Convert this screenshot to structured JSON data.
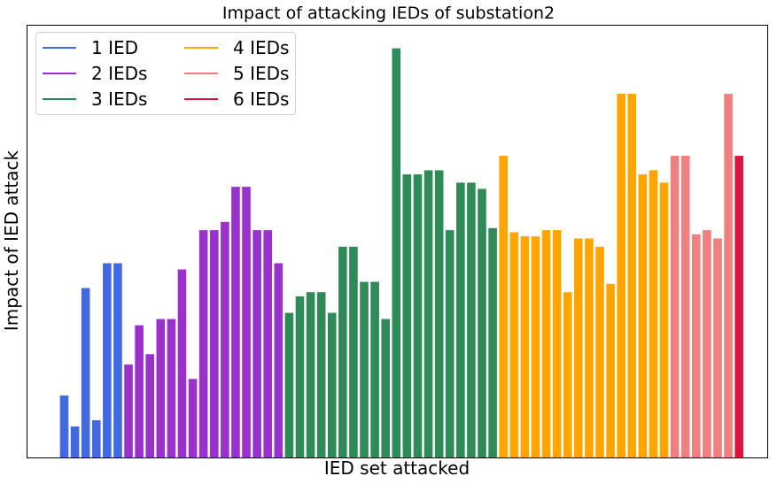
{
  "chart_data": {
    "type": "bar",
    "title": "Impact of attacking IEDs of substation2",
    "xlabel": "IED set attacked",
    "ylabel": "Impact of IED attack",
    "ylim": [
      0,
      100
    ],
    "grid": false,
    "legend_position": "top-left",
    "series": [
      {
        "name": "1 IED",
        "color": "#4169e1",
        "values": [
          15,
          7.5,
          41,
          9,
          47,
          47
        ]
      },
      {
        "name": "2 IEDs",
        "color": "#9932cc",
        "values": [
          22.5,
          32,
          25,
          33.5,
          33.5,
          45.5,
          19,
          55,
          55,
          57,
          65.5,
          65.5,
          55,
          55,
          47
        ]
      },
      {
        "name": "3 IEDs",
        "color": "#2e8b57",
        "values": [
          35,
          39,
          40,
          40,
          35,
          51,
          51,
          42.5,
          42.5,
          33.5,
          99,
          68.5,
          68.5,
          69.5,
          69.5,
          55,
          66.5,
          66.5,
          65,
          55.5
        ]
      },
      {
        "name": "4 IEDs",
        "color": "#ffa500",
        "values": [
          73,
          54.5,
          53.5,
          53.5,
          55,
          55,
          40,
          53,
          53,
          51,
          42,
          88,
          88,
          68.5,
          69.5,
          66.5
        ]
      },
      {
        "name": "5 IEDs",
        "color": "#f08080",
        "values": [
          73,
          73,
          54,
          55,
          53,
          88
        ]
      },
      {
        "name": "6 IEDs",
        "color": "#dc143c",
        "values": [
          73
        ]
      }
    ]
  }
}
